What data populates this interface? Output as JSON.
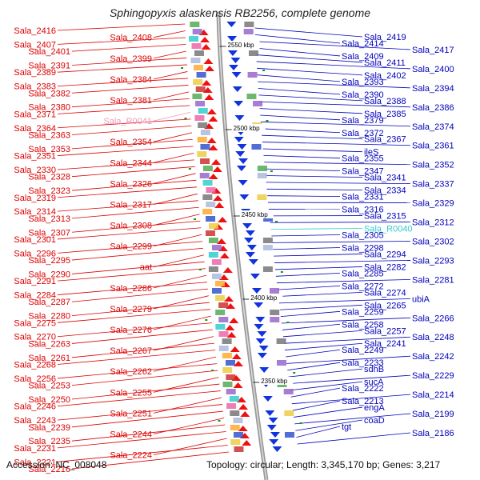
{
  "title": "Sphingopyxis alaskensis RB2256, complete genome",
  "accession": "Accession: NC_008048",
  "summary": "Topology: circular; Length: 3,345,170 bp; Genes: 3,217",
  "colors": {
    "left": "#dd0000",
    "right": "#0000bb",
    "pink": "#ee99bb",
    "cyan": "#33cccc",
    "spine": "#888888",
    "tick": "#119911"
  },
  "scale_ticks": [
    "2550 kbp",
    "2500 kbp",
    "2450 kbp",
    "2400 kbp",
    "2350 kbp"
  ],
  "left_labels": [
    "Sala_2416",
    "Sala_2408",
    "Sala_2407",
    "Sala_2401",
    "Sala_2399",
    "Sala_2391",
    "Sala_2389",
    "Sala_2384",
    "Sala_2383",
    "Sala_2382",
    "Sala_2381",
    "Sala_2380",
    "Sala_2371",
    "Sala_R0041",
    "Sala_2364",
    "Sala_2363",
    "Sala_2354",
    "Sala_2353",
    "Sala_2351",
    "Sala_2344",
    "Sala_2330",
    "Sala_2328",
    "Sala_2326",
    "Sala_2323",
    "Sala_2319",
    "Sala_2317",
    "Sala_2314",
    "Sala_2313",
    "Sala_2308",
    "Sala_2307",
    "Sala_2301",
    "Sala_2299",
    "Sala_2296",
    "Sala_2295",
    "aat",
    "Sala_2290",
    "Sala_2291",
    "Sala_2286",
    "Sala_2284",
    "Sala_2287",
    "Sala_2279",
    "Sala_2280",
    "Sala_2275",
    "Sala_2276",
    "Sala_2270",
    "Sala_2263",
    "Sala_2267",
    "Sala_2261",
    "Sala_2268",
    "Sala_2262",
    "Sala_2256",
    "Sala_2253",
    "Sala_2255",
    "Sala_2250",
    "Sala_2246",
    "Sala_2251",
    "Sala_2243",
    "Sala_2239",
    "Sala_2244",
    "Sala_2235",
    "Sala_2231",
    "Sala_2224",
    "Sala_2221",
    "Sala_2216"
  ],
  "right_labels": [
    "Sala_2419",
    "Sala_2414",
    "Sala_2417",
    "Sala_2409",
    "Sala_2411",
    "Sala_2400",
    "Sala_2402",
    "Sala_2393",
    "Sala_2394",
    "Sala_2390",
    "Sala_2388",
    "Sala_2386",
    "Sala_2385",
    "Sala_2379",
    "Sala_2374",
    "Sala_2372",
    "Sala_2367",
    "Sala_2361",
    "ileS",
    "Sala_2355",
    "Sala_2352",
    "Sala_2347",
    "Sala_2341",
    "Sala_2337",
    "Sala_2334",
    "Sala_2331",
    "Sala_2329",
    "Sala_2316",
    "Sala_2315",
    "Sala_2312",
    "Sala_R0040",
    "Sala_2305",
    "Sala_2302",
    "Sala_2298",
    "Sala_2294",
    "Sala_2293",
    "Sala_2282",
    "Sala_2285",
    "Sala_2281",
    "Sala_2272",
    "Sala_2274",
    "ubiA",
    "Sala_2265",
    "Sala_2259",
    "Sala_2266",
    "Sala_2258",
    "Sala_2257",
    "Sala_2248",
    "Sala_2241",
    "Sala_2249",
    "Sala_2242",
    "Sala_2233",
    "sdhB",
    "Sala_2229",
    "sucA",
    "Sala_2222",
    "Sala_2214",
    "Sala_2213",
    "engA",
    "Sala_2199",
    "coaD",
    "tgt",
    "Sala_2186"
  ]
}
